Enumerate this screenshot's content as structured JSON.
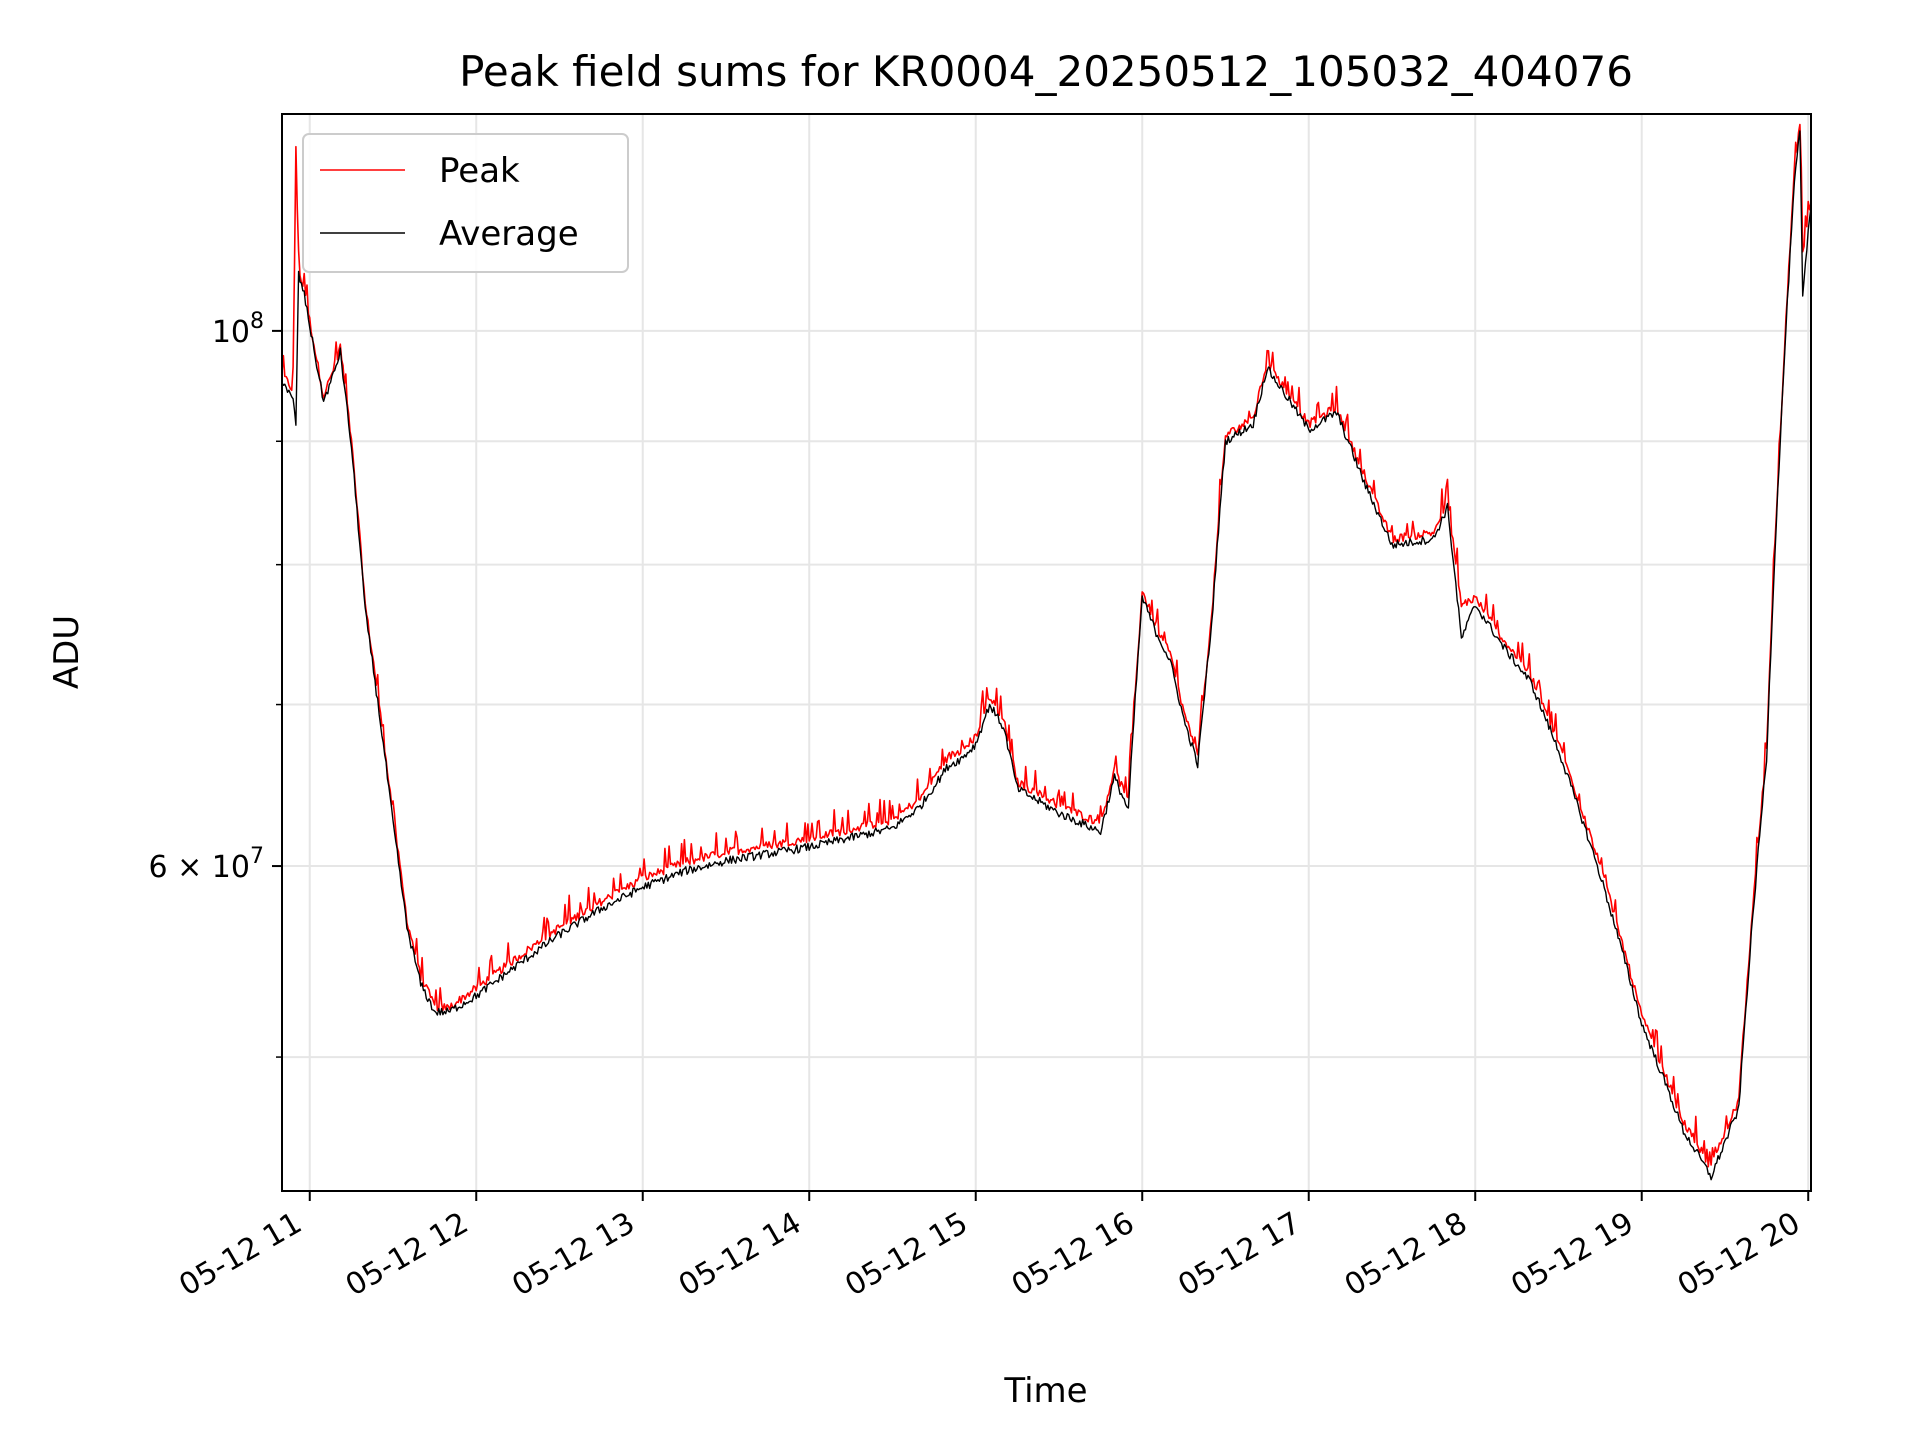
{
  "chart_data": {
    "type": "line",
    "title": "Peak field sums for KR0004_20250512_105032_404076",
    "xlabel": "Time",
    "ylabel": "ADU",
    "yscale": "log",
    "grid": true,
    "legend_position": "top-left",
    "x_ticks": [
      "05-12 11",
      "05-12 12",
      "05-12 13",
      "05-12 14",
      "05-12 15",
      "05-12 16",
      "05-12 17",
      "05-12 18",
      "05-12 19",
      "05-12 20"
    ],
    "y_ticks": [
      {
        "value": 100000000,
        "mantissa": "10",
        "exp": "8"
      },
      {
        "value": 60000000,
        "mantissa": "6 × 10",
        "exp": "7"
      }
    ],
    "y_minor_ticks": [
      50000000,
      70000000,
      80000000,
      90000000
    ],
    "xlim": [
      "2025-05-12 10:50",
      "2025-05-12 20:01"
    ],
    "ylim": [
      44000000,
      123000000
    ],
    "series": [
      {
        "name": "Peak",
        "color": "#ff0000",
        "points": [
          [
            "2025-05-12 10:50",
            96000000
          ],
          [
            "2025-05-12 10:54",
            94500000
          ],
          [
            "2025-05-12 10:55",
            119000000
          ],
          [
            "2025-05-12 10:56",
            106000000
          ],
          [
            "2025-05-12 10:58",
            104000000
          ],
          [
            "2025-05-12 11:02",
            98000000
          ],
          [
            "2025-05-12 11:05",
            94000000
          ],
          [
            "2025-05-12 11:08",
            96000000
          ],
          [
            "2025-05-12 11:11",
            98500000
          ],
          [
            "2025-05-12 11:15",
            90000000
          ],
          [
            "2025-05-12 11:20",
            77000000
          ],
          [
            "2025-05-12 11:25",
            70000000
          ],
          [
            "2025-05-12 11:30",
            63000000
          ],
          [
            "2025-05-12 11:35",
            57000000
          ],
          [
            "2025-05-12 11:40",
            54000000
          ],
          [
            "2025-05-12 11:45",
            52500000
          ],
          [
            "2025-05-12 11:50",
            52400000
          ],
          [
            "2025-05-12 12:00",
            53400000
          ],
          [
            "2025-05-12 12:15",
            55000000
          ],
          [
            "2025-05-12 12:30",
            56600000
          ],
          [
            "2025-05-12 12:45",
            58000000
          ],
          [
            "2025-05-12 13:00",
            59300000
          ],
          [
            "2025-05-12 13:15",
            60200000
          ],
          [
            "2025-05-12 13:30",
            60800000
          ],
          [
            "2025-05-12 14:00",
            61600000
          ],
          [
            "2025-05-12 14:30",
            62700000
          ],
          [
            "2025-05-12 14:40",
            64000000
          ],
          [
            "2025-05-12 14:50",
            66600000
          ],
          [
            "2025-05-12 14:55",
            67000000
          ],
          [
            "2025-05-12 15:00",
            67900000
          ],
          [
            "2025-05-12 15:05",
            70500000
          ],
          [
            "2025-05-12 15:10",
            69000000
          ],
          [
            "2025-05-12 15:15",
            65000000
          ],
          [
            "2025-05-12 15:30",
            63600000
          ],
          [
            "2025-05-12 15:45",
            62500000
          ],
          [
            "2025-05-12 15:50",
            65800000
          ],
          [
            "2025-05-12 15:55",
            63800000
          ],
          [
            "2025-05-12 16:00",
            78000000
          ],
          [
            "2025-05-12 16:05",
            75500000
          ],
          [
            "2025-05-12 16:10",
            73500000
          ],
          [
            "2025-05-12 16:15",
            69500000
          ],
          [
            "2025-05-12 16:20",
            66600000
          ],
          [
            "2025-05-12 16:25",
            76000000
          ],
          [
            "2025-05-12 16:30",
            90500000
          ],
          [
            "2025-05-12 16:40",
            92000000
          ],
          [
            "2025-05-12 16:45",
            97000000
          ],
          [
            "2025-05-12 17:00",
            91500000
          ],
          [
            "2025-05-12 17:10",
            93000000
          ],
          [
            "2025-05-12 17:20",
            87000000
          ],
          [
            "2025-05-12 17:30",
            82000000
          ],
          [
            "2025-05-12 17:45",
            82500000
          ],
          [
            "2025-05-12 17:50",
            85000000
          ],
          [
            "2025-05-12 17:55",
            77000000
          ],
          [
            "2025-05-12 18:00",
            77500000
          ],
          [
            "2025-05-12 18:10",
            74500000
          ],
          [
            "2025-05-12 18:20",
            72000000
          ],
          [
            "2025-05-12 18:30",
            67500000
          ],
          [
            "2025-05-12 18:45",
            60000000
          ],
          [
            "2025-05-12 19:00",
            52000000
          ],
          [
            "2025-05-12 19:15",
            47000000
          ],
          [
            "2025-05-12 19:25",
            45000000
          ],
          [
            "2025-05-12 19:35",
            48000000
          ],
          [
            "2025-05-12 19:45",
            67000000
          ],
          [
            "2025-05-12 19:50",
            91000000
          ],
          [
            "2025-05-12 19:55",
            116000000
          ],
          [
            "2025-05-12 19:57",
            122000000
          ],
          [
            "2025-05-12 19:58",
            108000000
          ],
          [
            "2025-05-12 20:00",
            111000000
          ],
          [
            "2025-05-12 20:01",
            113000000
          ]
        ]
      },
      {
        "name": "Average",
        "color": "#000000",
        "points": [
          [
            "2025-05-12 10:50",
            95500000
          ],
          [
            "2025-05-12 10:54",
            93500000
          ],
          [
            "2025-05-12 10:55",
            91500000
          ],
          [
            "2025-05-12 10:56",
            105500000
          ],
          [
            "2025-05-12 10:58",
            103500000
          ],
          [
            "2025-05-12 11:02",
            97500000
          ],
          [
            "2025-05-12 11:05",
            93500000
          ],
          [
            "2025-05-12 11:08",
            95500000
          ],
          [
            "2025-05-12 11:11",
            98000000
          ],
          [
            "2025-05-12 11:15",
            89500000
          ],
          [
            "2025-05-12 11:20",
            76500000
          ],
          [
            "2025-05-12 11:25",
            69500000
          ],
          [
            "2025-05-12 11:30",
            62500000
          ],
          [
            "2025-05-12 11:35",
            56600000
          ],
          [
            "2025-05-12 11:40",
            53600000
          ],
          [
            "2025-05-12 11:45",
            52200000
          ],
          [
            "2025-05-12 11:50",
            52200000
          ],
          [
            "2025-05-12 12:00",
            53000000
          ],
          [
            "2025-05-12 12:15",
            54600000
          ],
          [
            "2025-05-12 12:30",
            56200000
          ],
          [
            "2025-05-12 12:45",
            57600000
          ],
          [
            "2025-05-12 13:00",
            58800000
          ],
          [
            "2025-05-12 13:15",
            59700000
          ],
          [
            "2025-05-12 13:30",
            60300000
          ],
          [
            "2025-05-12 14:00",
            61100000
          ],
          [
            "2025-05-12 14:30",
            62200000
          ],
          [
            "2025-05-12 14:40",
            63500000
          ],
          [
            "2025-05-12 14:50",
            66000000
          ],
          [
            "2025-05-12 14:55",
            66500000
          ],
          [
            "2025-05-12 15:00",
            67400000
          ],
          [
            "2025-05-12 15:05",
            70000000
          ],
          [
            "2025-05-12 15:10",
            68500000
          ],
          [
            "2025-05-12 15:15",
            64600000
          ],
          [
            "2025-05-12 15:30",
            63100000
          ],
          [
            "2025-05-12 15:45",
            62000000
          ],
          [
            "2025-05-12 15:50",
            65300000
          ],
          [
            "2025-05-12 15:55",
            63300000
          ],
          [
            "2025-05-12 16:00",
            77500000
          ],
          [
            "2025-05-12 16:05",
            75000000
          ],
          [
            "2025-05-12 16:10",
            73000000
          ],
          [
            "2025-05-12 16:15",
            69000000
          ],
          [
            "2025-05-12 16:20",
            66100000
          ],
          [
            "2025-05-12 16:25",
            75500000
          ],
          [
            "2025-05-12 16:30",
            90000000
          ],
          [
            "2025-05-12 16:40",
            91500000
          ],
          [
            "2025-05-12 16:45",
            96500000
          ],
          [
            "2025-05-12 17:00",
            91000000
          ],
          [
            "2025-05-12 17:10",
            92500000
          ],
          [
            "2025-05-12 17:20",
            86500000
          ],
          [
            "2025-05-12 17:30",
            81500000
          ],
          [
            "2025-05-12 17:45",
            82000000
          ],
          [
            "2025-05-12 17:50",
            84500000
          ],
          [
            "2025-05-12 17:55",
            74500000
          ],
          [
            "2025-05-12 18:00",
            77000000
          ],
          [
            "2025-05-12 18:10",
            74000000
          ],
          [
            "2025-05-12 18:20",
            71500000
          ],
          [
            "2025-05-12 18:30",
            67000000
          ],
          [
            "2025-05-12 18:45",
            59500000
          ],
          [
            "2025-05-12 19:00",
            51600000
          ],
          [
            "2025-05-12 19:15",
            46600000
          ],
          [
            "2025-05-12 19:25",
            44600000
          ],
          [
            "2025-05-12 19:35",
            47600000
          ],
          [
            "2025-05-12 19:45",
            66500000
          ],
          [
            "2025-05-12 19:50",
            90500000
          ],
          [
            "2025-05-12 19:55",
            115000000
          ],
          [
            "2025-05-12 19:57",
            121000000
          ],
          [
            "2025-05-12 19:58",
            103000000
          ],
          [
            "2025-05-12 20:00",
            110000000
          ],
          [
            "2025-05-12 20:01",
            112500000
          ]
        ]
      }
    ]
  }
}
